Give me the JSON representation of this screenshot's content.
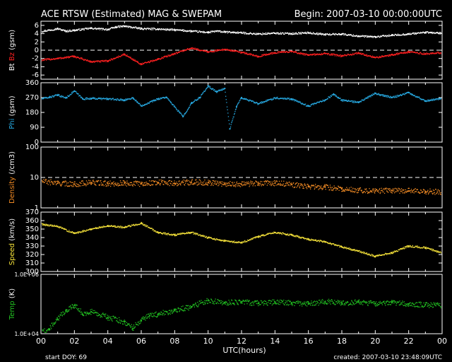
{
  "header": {
    "title": "ACE RTSW (Estimated) MAG & SWEPAM",
    "begin": "Begin: 2007-03-10 00:00:00UTC"
  },
  "footer": {
    "start_doy": "start DOY:  69",
    "created": "created: 2007-03-10 23:48:09UTC"
  },
  "chart_data": {
    "type": "scatter",
    "shared_x": {
      "label": "UTC(hours)",
      "ticks": [
        "00",
        "02",
        "04",
        "06",
        "08",
        "10",
        "12",
        "14",
        "16",
        "18",
        "20",
        "22",
        "00"
      ],
      "range": [
        0,
        24
      ]
    },
    "panels": [
      {
        "id": "mag",
        "ylabel_parts": [
          {
            "text": "Bt ",
            "color": "#ffffff"
          },
          {
            "text": "Bz ",
            "color": "#ff2020"
          },
          {
            "text": "(gsm)",
            "color": "#ffffff"
          }
        ],
        "ylim": [
          -7,
          7
        ],
        "yticks": [
          "6",
          "4",
          "2",
          "0",
          "-2",
          "-4",
          "-6"
        ],
        "ytick_values": [
          6,
          4,
          2,
          0,
          -2,
          -4,
          -6
        ],
        "dashed_at": 0,
        "series": [
          {
            "name": "Bt",
            "color": "#ffffff",
            "x": [
              0,
              1,
              1.5,
              2,
              3,
              4,
              4.5,
              5,
              6,
              7,
              8,
              9,
              10,
              10.5,
              11,
              12,
              13,
              14,
              15,
              16,
              17,
              18,
              19,
              20,
              21,
              22,
              23,
              24
            ],
            "y": [
              4.5,
              5.2,
              4.6,
              4.8,
              5.3,
              5.0,
              5.6,
              5.8,
              5.2,
              5.1,
              4.9,
              4.6,
              4.3,
              4.6,
              4.4,
              4.2,
              3.9,
              4.1,
              4.0,
              4.2,
              3.8,
              3.9,
              3.4,
              3.2,
              3.6,
              3.9,
              4.3,
              4.1
            ]
          },
          {
            "name": "Bz",
            "color": "#ff2020",
            "x": [
              0,
              1,
              2,
              3,
              4,
              5,
              6,
              7,
              8,
              9,
              10,
              11,
              12,
              13,
              14,
              15,
              16,
              17,
              18,
              19,
              20,
              21,
              22,
              23,
              24
            ],
            "y": [
              -2.4,
              -2.0,
              -1.5,
              -2.8,
              -2.6,
              -1.0,
              -3.4,
              -2.2,
              -0.8,
              0.5,
              -0.4,
              0.2,
              -0.5,
              -1.5,
              -0.6,
              -0.3,
              -1.2,
              -0.8,
              -1.4,
              -0.7,
              -1.8,
              -1.1,
              -0.4,
              -0.9,
              -0.6
            ]
          }
        ]
      },
      {
        "id": "phi",
        "ylabel_parts": [
          {
            "text": "Phi ",
            "color": "#27a9e1"
          },
          {
            "text": "(gsm)",
            "color": "#ffffff"
          }
        ],
        "ylim": [
          0,
          360
        ],
        "yticks": [
          "360",
          "270",
          "180",
          "90",
          "0"
        ],
        "ytick_values": [
          360,
          270,
          180,
          90,
          0
        ],
        "series": [
          {
            "name": "Phi",
            "color": "#27a9e1",
            "x": [
              0,
              0.5,
              1,
              1.5,
              2,
              2.5,
              3,
              4,
              5,
              5.5,
              6,
              7,
              7.5,
              8.5,
              9,
              9.5,
              10,
              10.5,
              11,
              11.3,
              11.7,
              12,
              13,
              14,
              15,
              16,
              17,
              17.5,
              18,
              19,
              20,
              21,
              22,
              23,
              24
            ],
            "y": [
              262,
              272,
              285,
              268,
              310,
              262,
              265,
              262,
              255,
              268,
              220,
              262,
              272,
              155,
              235,
              270,
              340,
              305,
              325,
              80,
              215,
              270,
              232,
              268,
              262,
              218,
              255,
              290,
              255,
              240,
              295,
              270,
              300,
              250,
              265
            ]
          }
        ]
      },
      {
        "id": "density",
        "ylabel_parts": [
          {
            "text": "Density ",
            "color": "#f08a24"
          },
          {
            "text": "(/cm3)",
            "color": "#ffffff"
          }
        ],
        "ylim": [
          1,
          100
        ],
        "yscale": "log",
        "yticks": [
          "100",
          "10",
          "1"
        ],
        "ytick_values": [
          100,
          10,
          1
        ],
        "dashed_at": 10,
        "series": [
          {
            "name": "Density",
            "color": "#f08a24",
            "x": [
              0,
              1,
              2,
              3,
              4,
              5,
              6,
              7,
              8,
              9,
              10,
              11,
              12,
              13,
              14,
              15,
              16,
              17,
              18,
              19,
              20,
              21,
              22,
              23,
              24
            ],
            "y": [
              7.5,
              6.5,
              6.0,
              6.8,
              6.2,
              6.5,
              6.2,
              6.9,
              6.5,
              7.0,
              6.8,
              6.2,
              6.0,
              6.4,
              6.5,
              5.8,
              5.0,
              4.8,
              4.2,
              3.8,
              3.6,
              3.8,
              3.6,
              3.5,
              3.3
            ]
          }
        ]
      },
      {
        "id": "speed",
        "ylabel_parts": [
          {
            "text": "Speed ",
            "color": "#f5e23a"
          },
          {
            "text": "(km/s)",
            "color": "#ffffff"
          }
        ],
        "ylim": [
          300,
          370
        ],
        "yticks": [
          "370",
          "360",
          "350",
          "340",
          "330",
          "320",
          "310",
          "300"
        ],
        "ytick_values": [
          370,
          360,
          350,
          340,
          330,
          320,
          310,
          300
        ],
        "series": [
          {
            "name": "Speed",
            "color": "#f5e23a",
            "x": [
              0,
              1,
              2,
              3,
              4,
              5,
              6,
              7,
              8,
              9,
              10,
              11,
              12,
              13,
              14,
              15,
              16,
              17,
              18,
              19,
              20,
              21,
              22,
              23,
              24
            ],
            "y": [
              356,
              353,
              345,
              350,
              354,
              352,
              357,
              346,
              343,
              346,
              340,
              336,
              334,
              341,
              346,
              343,
              338,
              335,
              329,
              324,
              318,
              322,
              330,
              328,
              322
            ]
          }
        ]
      },
      {
        "id": "temp",
        "ylabel_parts": [
          {
            "text": "Temp ",
            "color": "#22c322"
          },
          {
            "text": "(K)",
            "color": "#ffffff"
          }
        ],
        "ylim": [
          10000,
          1000000
        ],
        "yscale": "log",
        "yticks": [
          "1.0E+06",
          "1.0E+04"
        ],
        "ytick_values": [
          1000000,
          10000
        ],
        "series": [
          {
            "name": "Temp",
            "color": "#22c322",
            "x": [
              0,
              0.5,
              1,
              1.5,
              2,
              2.5,
              3,
              4,
              5,
              5.5,
              6,
              6.5,
              7,
              8,
              9,
              10,
              11,
              12,
              13,
              14,
              15,
              16,
              17,
              18,
              19,
              20,
              21,
              22,
              23,
              24
            ],
            "y": [
              11000,
              14000,
              30000,
              60000,
              90000,
              45000,
              55000,
              35000,
              25000,
              15000,
              28000,
              40000,
              45000,
              60000,
              80000,
              130000,
              110000,
              120000,
              105000,
              115000,
              110000,
              100000,
              120000,
              110000,
              115000,
              105000,
              110000,
              100000,
              95000,
              90000
            ]
          }
        ]
      }
    ]
  }
}
